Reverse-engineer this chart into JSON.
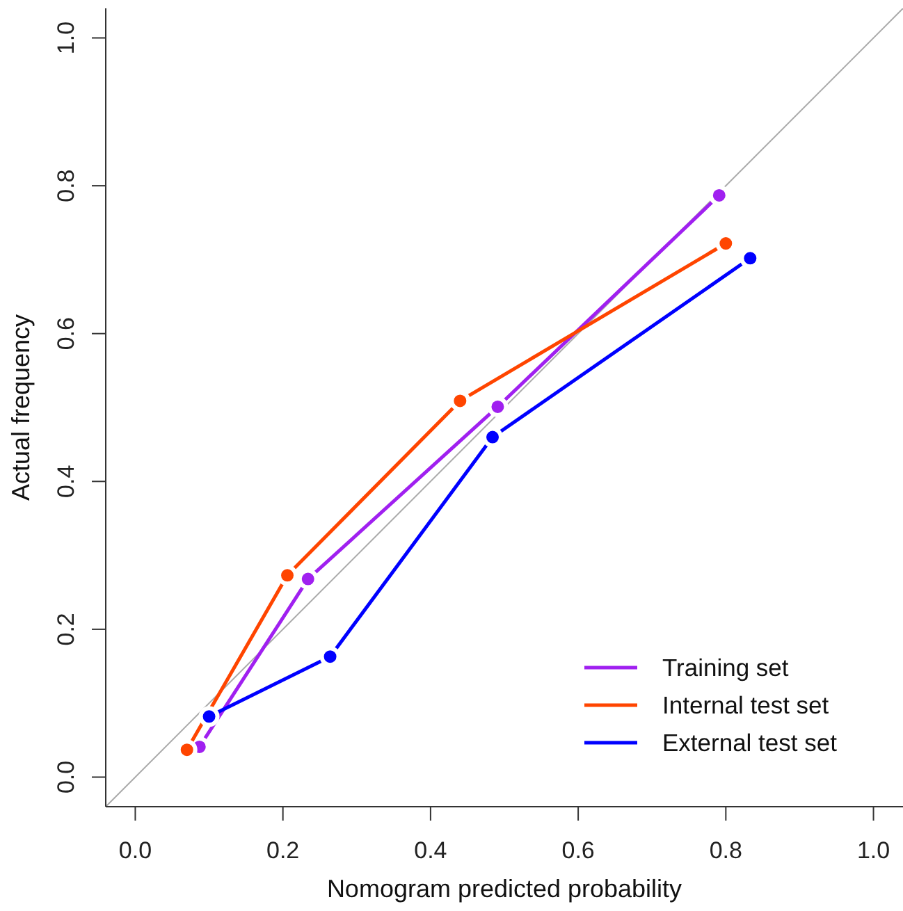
{
  "chart_data": {
    "type": "line",
    "xlabel": "Nomogram predicted probability",
    "ylabel": "Actual frequency",
    "xlim": [
      -0.04,
      1.04
    ],
    "ylim": [
      -0.04,
      1.04
    ],
    "xticks": [
      {
        "value": 0,
        "label": "0.0"
      },
      0.2,
      0.4,
      0.6,
      0.8,
      {
        "value": 1,
        "label": "1.0"
      }
    ],
    "yticks": [
      {
        "value": 0,
        "label": "0.0"
      },
      0.2,
      0.4,
      0.6,
      0.8,
      {
        "value": 1,
        "label": "1.0"
      }
    ],
    "grid": false,
    "legend": "bottom right",
    "marker": "circle",
    "line_style": "solid",
    "series": [
      {
        "color": "#aaaaaa",
        "x": [
          -0.04,
          1.04
        ],
        "values": [
          -0.04,
          1.04
        ],
        "marker": "none"
      },
      {
        "name": "Training set",
        "color": "#a020f0",
        "x": [
          0.087,
          0.234,
          0.491,
          0.791
        ],
        "values": [
          0.041,
          0.268,
          0.501,
          0.787
        ]
      },
      {
        "name": "Internal test set",
        "color": "#ff4500",
        "x": [
          0.07,
          0.206,
          0.44,
          0.8
        ],
        "values": [
          0.037,
          0.273,
          0.509,
          0.722
        ]
      },
      {
        "name": "External test set",
        "color": "#0000ff",
        "x": [
          0.1,
          0.264,
          0.484,
          0.833
        ],
        "values": [
          0.082,
          0.163,
          0.46,
          0.702
        ]
      }
    ]
  }
}
